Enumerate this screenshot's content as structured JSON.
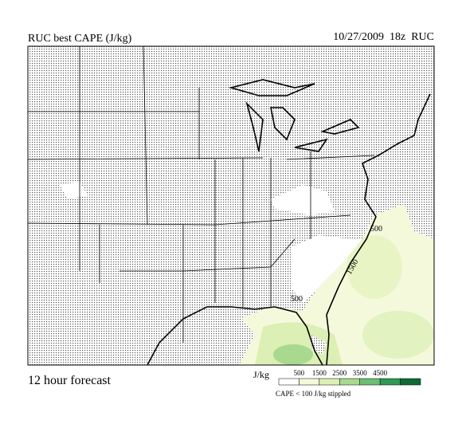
{
  "header": {
    "title": "RUC best CAPE (J/kg)",
    "timestamp": "10/27/2009  18z  RUC"
  },
  "map": {
    "contour_labels": [
      "500",
      "1500",
      "500"
    ]
  },
  "footer": {
    "forecast": "12 hour forecast",
    "legend_unit": "J/kg",
    "legend_ticks": [
      500,
      1500,
      2500,
      3500,
      4500
    ],
    "legend_note": "CAPE < 100 J/kg stippled"
  }
}
